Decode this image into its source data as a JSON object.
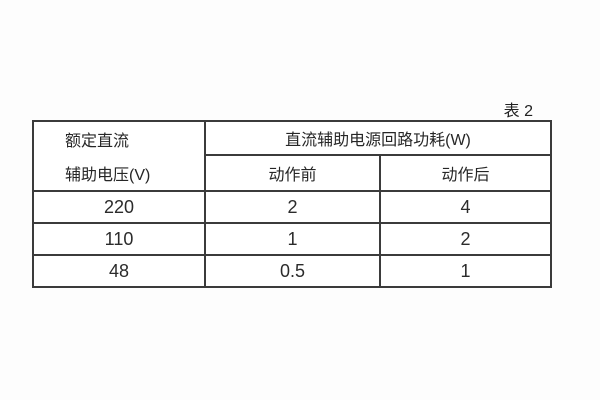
{
  "page": {
    "background_color": "#fdfdfd",
    "border_color": "#3b3b3b",
    "text_color": "#262626"
  },
  "caption": {
    "label": "表 2"
  },
  "table": {
    "header": {
      "col1_line1": "额定直流",
      "col1_line2": "辅助电压(V)",
      "group": "直流辅助电源回路功耗(W)",
      "sub_before": "动作前",
      "sub_after": "动作后"
    },
    "rows": [
      {
        "voltage": "220",
        "before": "2",
        "after": "4"
      },
      {
        "voltage": "110",
        "before": "1",
        "after": "2"
      },
      {
        "voltage": "48",
        "before": "0.5",
        "after": "1"
      }
    ]
  }
}
